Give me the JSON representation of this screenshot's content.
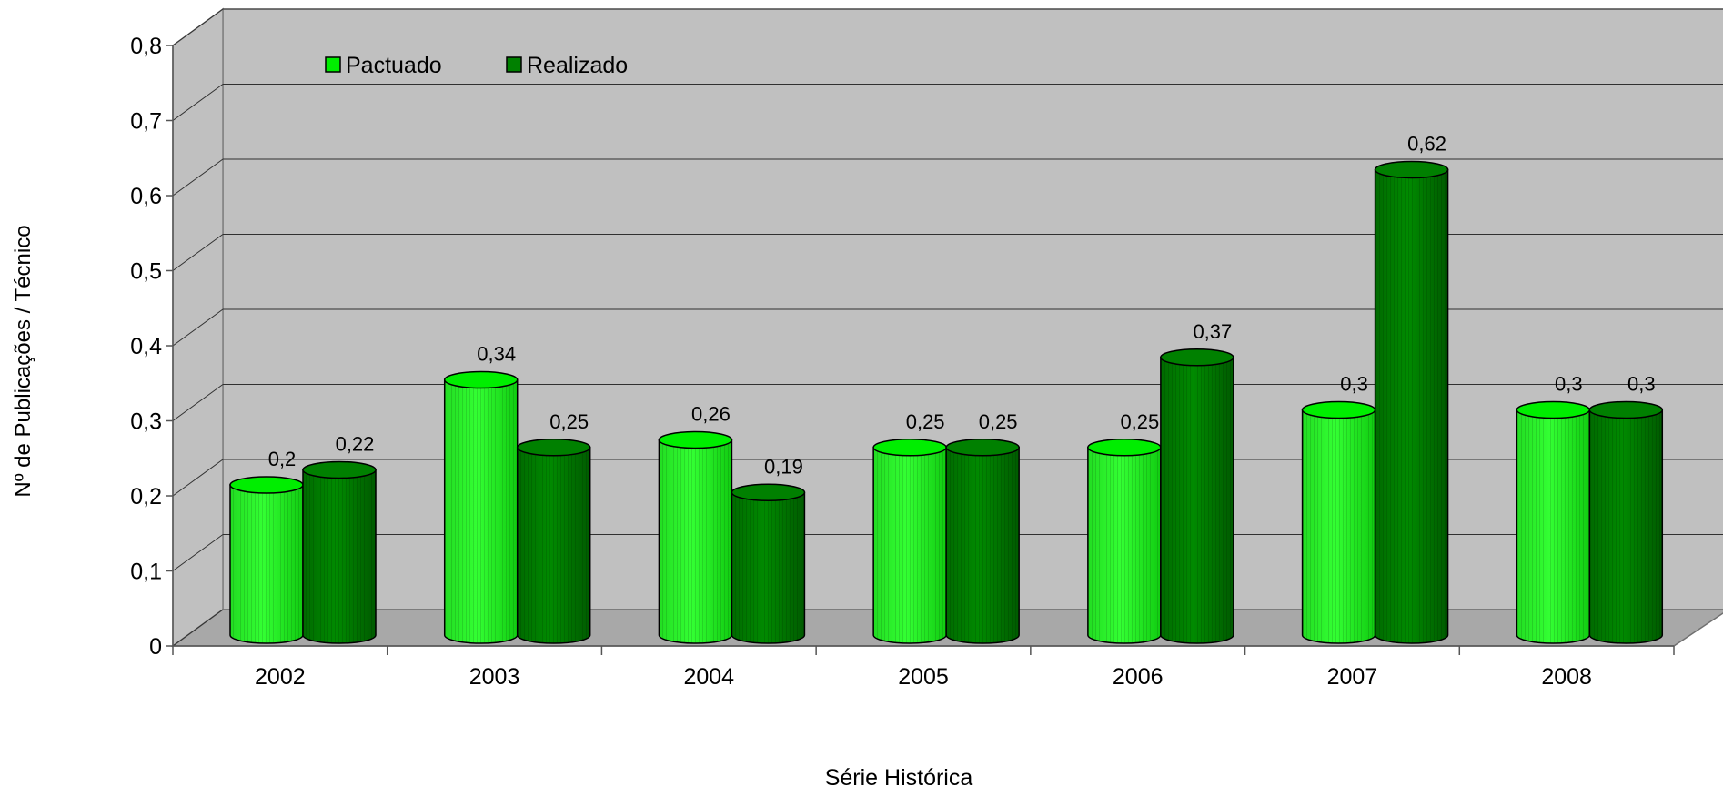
{
  "chart_data": {
    "type": "bar",
    "style": "3d-cylinder",
    "categories": [
      "2002",
      "2003",
      "2004",
      "2005",
      "2006",
      "2007",
      "2008"
    ],
    "series": [
      {
        "name": "Pactuado",
        "values": [
          0.2,
          0.34,
          0.26,
          0.25,
          0.25,
          0.3,
          0.3
        ],
        "labels": [
          "0,2",
          "0,34",
          "0,26",
          "0,25",
          "0,25",
          "0,3",
          "0,3"
        ]
      },
      {
        "name": "Realizado",
        "values": [
          0.22,
          0.25,
          0.19,
          0.25,
          0.37,
          0.62,
          0.3
        ],
        "labels": [
          "0,22",
          "0,25",
          "0,19",
          "0,25",
          "0,37",
          "0,62",
          "0,3"
        ]
      }
    ],
    "y_ticks": [
      "0",
      "0,1",
      "0,2",
      "0,3",
      "0,4",
      "0,5",
      "0,6",
      "0,7",
      "0,8"
    ],
    "ylim": [
      0,
      0.8
    ],
    "xlabel": "Série Histórica",
    "ylabel": "Nº de Publicações / Técnico",
    "grid": true,
    "legend_position": "top-left",
    "colors": {
      "pactuado": "#00ee00",
      "pactuado_dark": "#00b000",
      "realizado": "#008000",
      "realizado_dark": "#005a00",
      "wall": "#c0c0c0",
      "floor": "#a8a8a8"
    }
  }
}
